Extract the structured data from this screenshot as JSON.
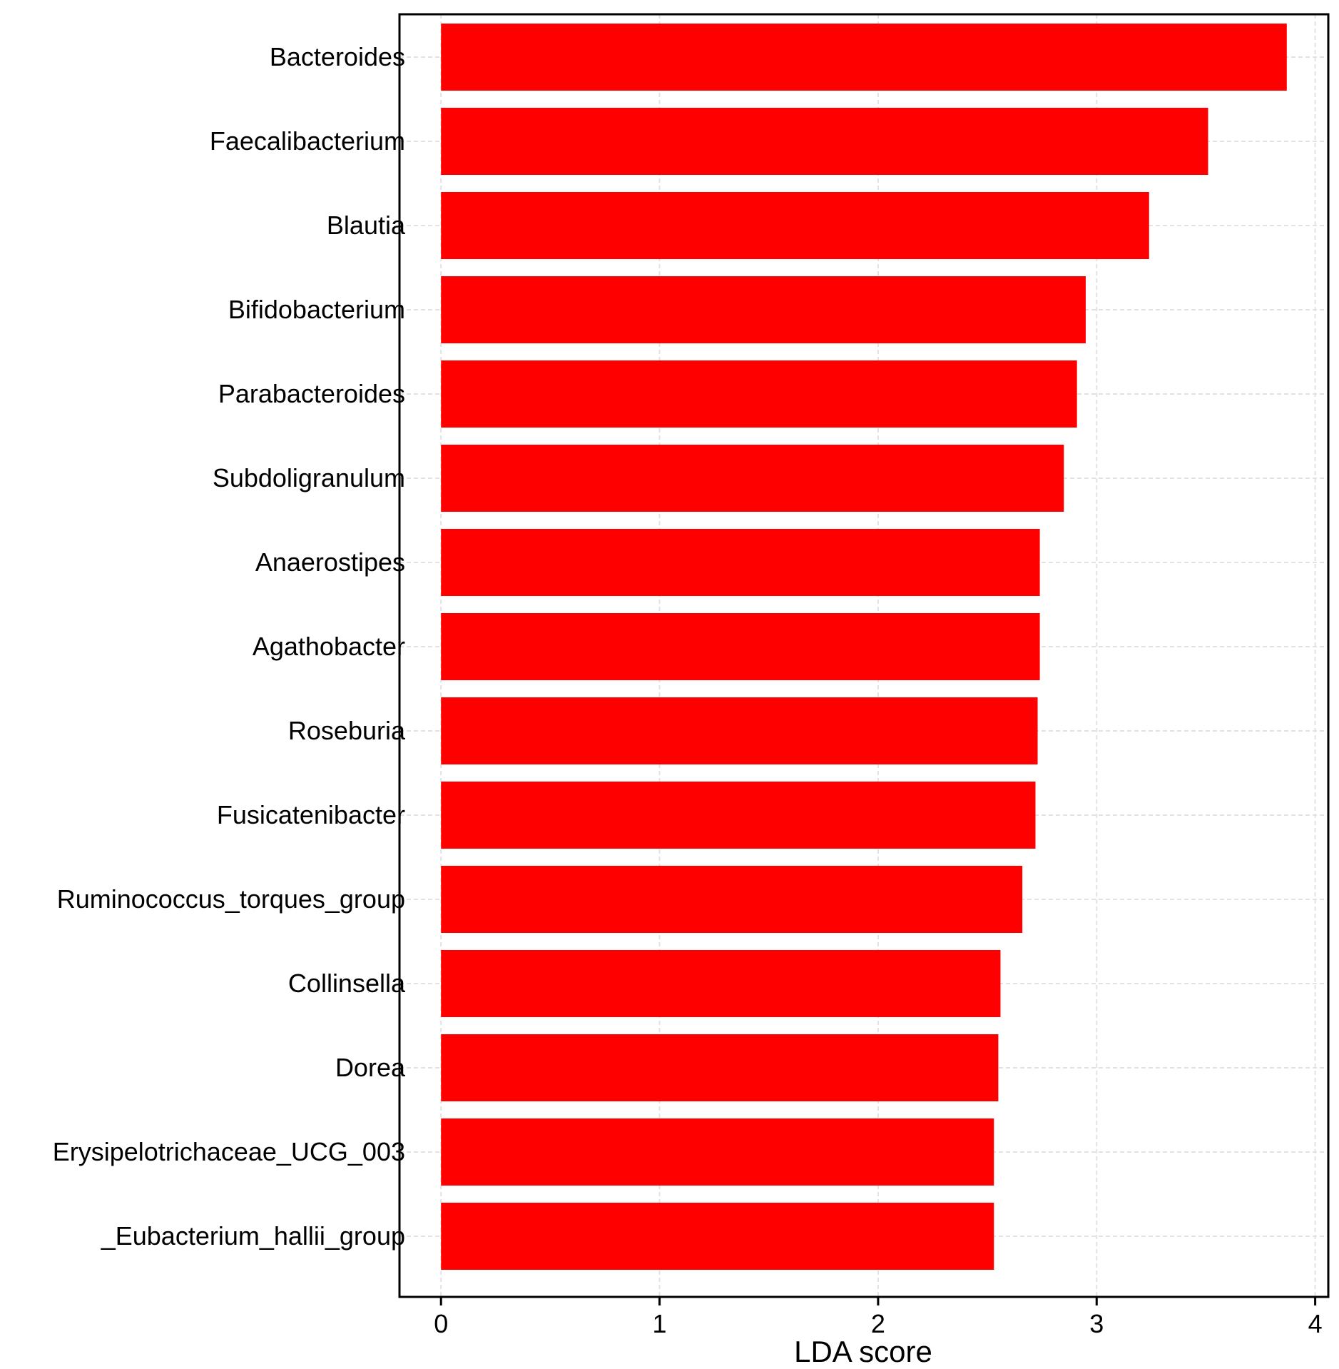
{
  "chart_data": {
    "type": "bar",
    "orientation": "horizontal",
    "categories": [
      "Bacteroides",
      "Faecalibacterium",
      "Blautia",
      "Bifidobacterium",
      "Parabacteroides",
      "Subdoligranulum",
      "Anaerostipes",
      "Agathobacter",
      "Roseburia",
      "Fusicatenibacter",
      "Ruminococcus_torques_group",
      "Collinsella",
      "Dorea",
      "Erysipelotrichaceae_UCG_003",
      "_Eubacterium_hallii_group"
    ],
    "values": [
      3.87,
      3.51,
      3.24,
      2.95,
      2.91,
      2.85,
      2.74,
      2.74,
      2.73,
      2.72,
      2.66,
      2.56,
      2.55,
      2.53,
      2.53
    ],
    "bar_color": "#ff0000",
    "title": "",
    "xlabel": "LDA score",
    "ylabel": "",
    "xlim": [
      -0.19,
      4.06
    ],
    "xticks": [
      0,
      1,
      2,
      3,
      4
    ],
    "grid": true
  }
}
